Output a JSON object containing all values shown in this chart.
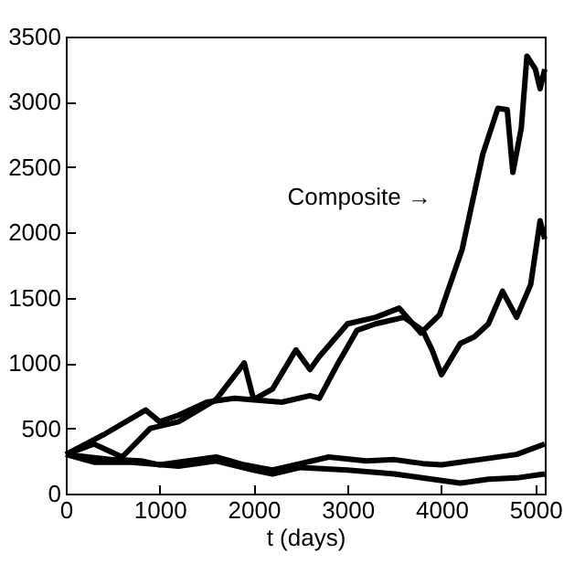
{
  "chart_data": {
    "type": "line",
    "xlabel": "t (days)",
    "annotations": [
      "Composite →"
    ],
    "xlim": [
      0,
      5100
    ],
    "xticks": [
      0,
      1000,
      2000,
      3000,
      4000,
      5000
    ],
    "ylim": [
      0,
      3500
    ],
    "yticks": [
      0,
      500,
      1000,
      1500,
      2000,
      2500,
      3000,
      3500
    ],
    "grid": false,
    "legend": false,
    "series": [
      {
        "color": "#000000",
        "x": [
          0,
          300,
          600,
          900,
          1200,
          1600,
          1900,
          2000,
          2200,
          2450,
          2600,
          2700,
          3000,
          3300,
          3550,
          3780,
          3980,
          4220,
          4440,
          4600,
          4700,
          4760,
          4850,
          4910,
          5000,
          5050,
          5100
        ],
        "values": [
          300,
          380,
          280,
          500,
          550,
          720,
          1000,
          720,
          800,
          1100,
          950,
          1050,
          1300,
          1350,
          1420,
          1230,
          1370,
          1870,
          2600,
          2950,
          2940,
          2460,
          2800,
          3350,
          3250,
          3100,
          3250
        ]
      },
      {
        "color": "#000000",
        "x": [
          0,
          400,
          850,
          1000,
          1200,
          1500,
          1800,
          2300,
          2600,
          2700,
          2900,
          3100,
          3300,
          3600,
          3800,
          3900,
          4000,
          4200,
          4350,
          4500,
          4650,
          4800,
          4950,
          5050,
          5100
        ],
        "values": [
          300,
          450,
          640,
          550,
          600,
          700,
          730,
          700,
          750,
          730,
          1000,
          1250,
          1300,
          1350,
          1250,
          1100,
          910,
          1150,
          1200,
          1300,
          1550,
          1350,
          1600,
          2090,
          1950
        ]
      },
      {
        "color": "#000000",
        "x": [
          0,
          500,
          800,
          1000,
          1600,
          1900,
          2200,
          2500,
          2800,
          3200,
          3500,
          3800,
          4000,
          4400,
          4800,
          5100
        ],
        "values": [
          300,
          260,
          250,
          220,
          280,
          220,
          180,
          230,
          280,
          250,
          260,
          230,
          220,
          260,
          300,
          380
        ]
      },
      {
        "color": "#000000",
        "x": [
          0,
          300,
          700,
          1200,
          1600,
          2000,
          2200,
          2500,
          3000,
          3500,
          3900,
          4200,
          4500,
          4800,
          5100
        ],
        "values": [
          300,
          240,
          240,
          210,
          250,
          180,
          150,
          200,
          180,
          150,
          110,
          80,
          110,
          120,
          150
        ]
      }
    ]
  }
}
